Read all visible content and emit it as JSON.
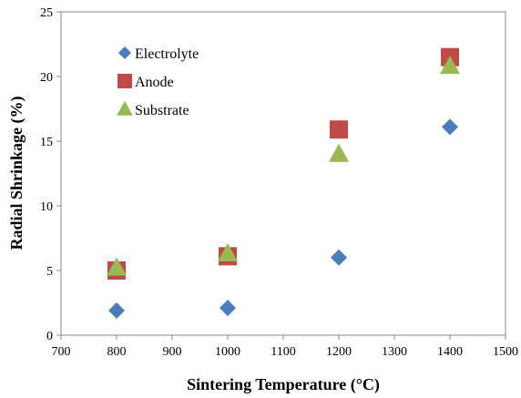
{
  "chart_data": {
    "type": "scatter",
    "xlabel": "Sintering Temperature (°C)",
    "ylabel": "Radial Shrinkage (%)",
    "xlim": [
      700,
      1500
    ],
    "ylim": [
      0,
      25
    ],
    "xticks": [
      700,
      800,
      900,
      1000,
      1100,
      1200,
      1300,
      1400,
      1500
    ],
    "yticks": [
      0,
      5,
      10,
      15,
      20,
      25
    ],
    "grid": false,
    "legend": "top-left",
    "series": [
      {
        "name": "Electrolyte",
        "marker": "diamond",
        "color": "#4a7ebb",
        "x": [
          800,
          1000,
          1200,
          1400
        ],
        "y": [
          1.9,
          2.1,
          6.0,
          16.1
        ]
      },
      {
        "name": "Anode",
        "marker": "square",
        "color": "#be4b48",
        "x": [
          800,
          1000,
          1200,
          1400
        ],
        "y": [
          5.0,
          6.1,
          15.9,
          21.5
        ]
      },
      {
        "name": "Substrate",
        "marker": "triangle",
        "color": "#98b954",
        "x": [
          800,
          1000,
          1200,
          1400
        ],
        "y": [
          5.2,
          6.3,
          14.0,
          20.8
        ]
      }
    ]
  }
}
